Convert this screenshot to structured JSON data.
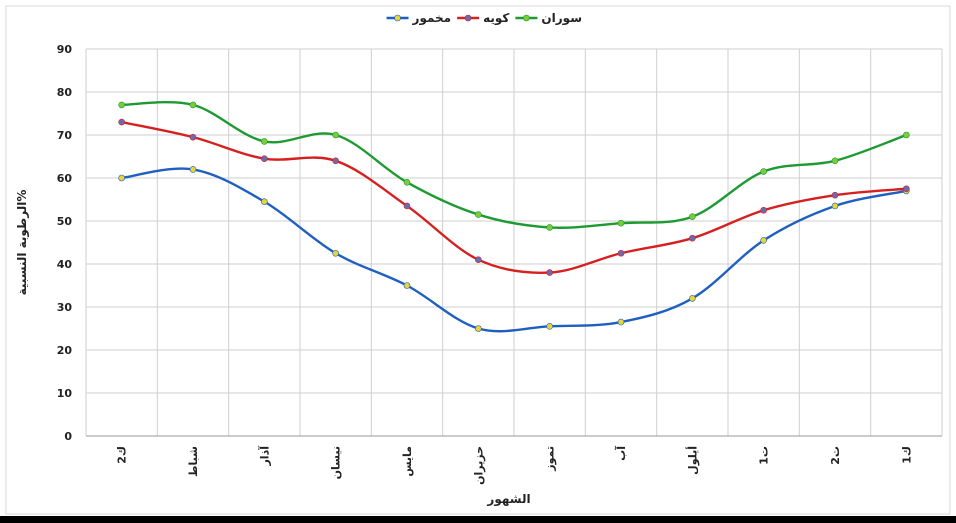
{
  "chart_data": {
    "type": "line",
    "title": "",
    "xlabel": "الشهور",
    "ylabel": "الرطوبة النسبية%",
    "ylim": [
      0,
      90
    ],
    "yticks": [
      0,
      10,
      20,
      30,
      40,
      50,
      60,
      70,
      80,
      90
    ],
    "grid": true,
    "legend_position": "top",
    "categories": [
      "ك2",
      "شباط",
      "آذار",
      "نيسان",
      "مايس",
      "حزيران",
      "تموز",
      "آب",
      "أيلول",
      "ت1",
      "ت2",
      "ك1"
    ],
    "series": [
      {
        "name": "مخمور",
        "color": "#1f5fbf",
        "marker_color": "#e6d43a",
        "values": [
          60,
          62,
          54.5,
          42.5,
          35,
          25,
          25.5,
          26.5,
          32,
          45.5,
          53.5,
          57
        ]
      },
      {
        "name": "كويه",
        "color": "#d62020",
        "marker_color": "#6a6ab0",
        "values": [
          73,
          69.5,
          64.5,
          64,
          53.5,
          41,
          38,
          42.5,
          46,
          52.5,
          56,
          57.5
        ]
      },
      {
        "name": "سوران",
        "color": "#1e9a32",
        "marker_color": "#7acc3a",
        "values": [
          77,
          77,
          68.5,
          70,
          59,
          51.5,
          48.5,
          49.5,
          51,
          61.5,
          64,
          70
        ]
      }
    ]
  }
}
